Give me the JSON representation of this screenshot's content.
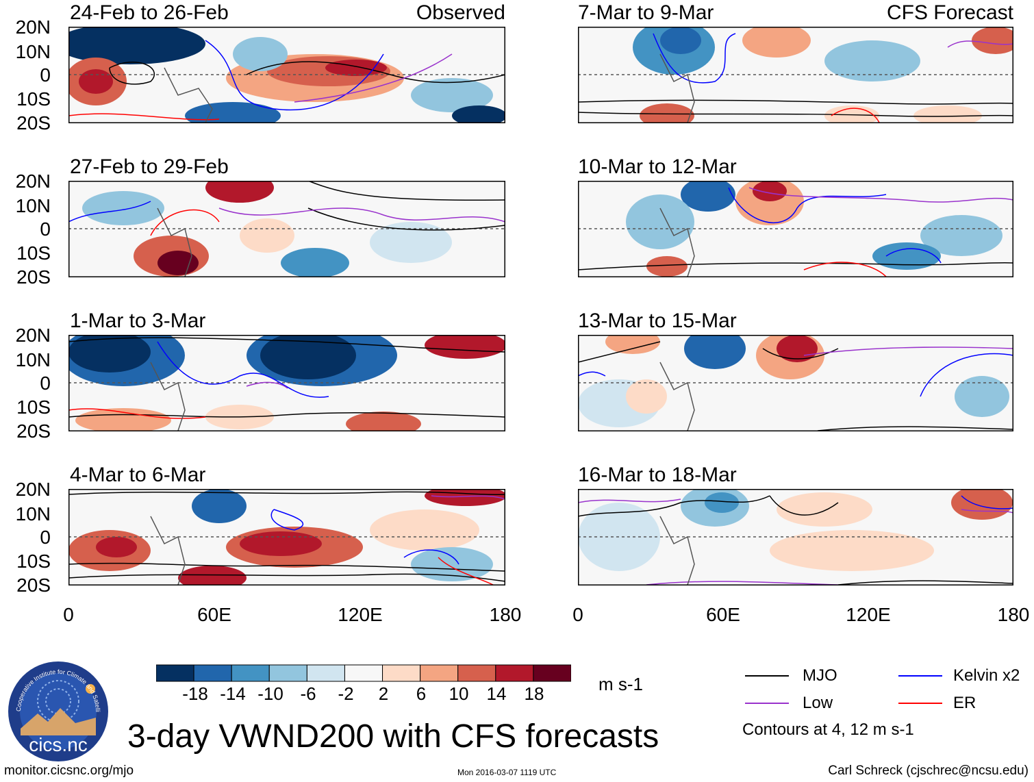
{
  "figure": {
    "title": "3-day VWND200 with CFS forecasts",
    "url": "monitor.cicsnc.org/mjo",
    "timestamp": "Mon 2016-03-07 1119 UTC",
    "author": "Carl Schreck (cjschrec@ncsu.edu)",
    "logo_text": "cics.nc",
    "logo_ring_text": "Cooperative Institute for Climate and Satellites",
    "observed_label": "Observed",
    "forecast_label": "CFS Forecast"
  },
  "axes": {
    "lat_labels": [
      "20N",
      "10N",
      "0",
      "10S",
      "20S"
    ],
    "lon_labels": [
      "0",
      "60E",
      "120E",
      "180"
    ]
  },
  "panels": {
    "observed": [
      {
        "label": "24-Feb to 26-Feb"
      },
      {
        "label": "27-Feb to 29-Feb"
      },
      {
        "label": "1-Mar to 3-Mar"
      },
      {
        "label": "4-Mar to 6-Mar"
      }
    ],
    "forecast": [
      {
        "label": "7-Mar to 9-Mar"
      },
      {
        "label": "10-Mar to 12-Mar"
      },
      {
        "label": "13-Mar to 15-Mar"
      },
      {
        "label": "16-Mar to 18-Mar"
      }
    ]
  },
  "colorbar": {
    "unit": "m s-1",
    "ticks": [
      "-18",
      "-14",
      "-10",
      "-6",
      "-2",
      "2",
      "6",
      "10",
      "14",
      "18"
    ],
    "colors": [
      "#053061",
      "#2166ac",
      "#4393c3",
      "#92c5de",
      "#d1e5f0",
      "#f7f7f7",
      "#fddbc7",
      "#f4a582",
      "#d6604d",
      "#b2182b",
      "#67001f"
    ]
  },
  "legend": {
    "items": [
      {
        "label": "MJO",
        "color": "#000000"
      },
      {
        "label": "Kelvin x2",
        "color": "#0000ff"
      },
      {
        "label": "Low",
        "color": "#9932cc"
      },
      {
        "label": "ER",
        "color": "#ff0000"
      }
    ],
    "note": "Contours at 4, 12 m s-1"
  }
}
